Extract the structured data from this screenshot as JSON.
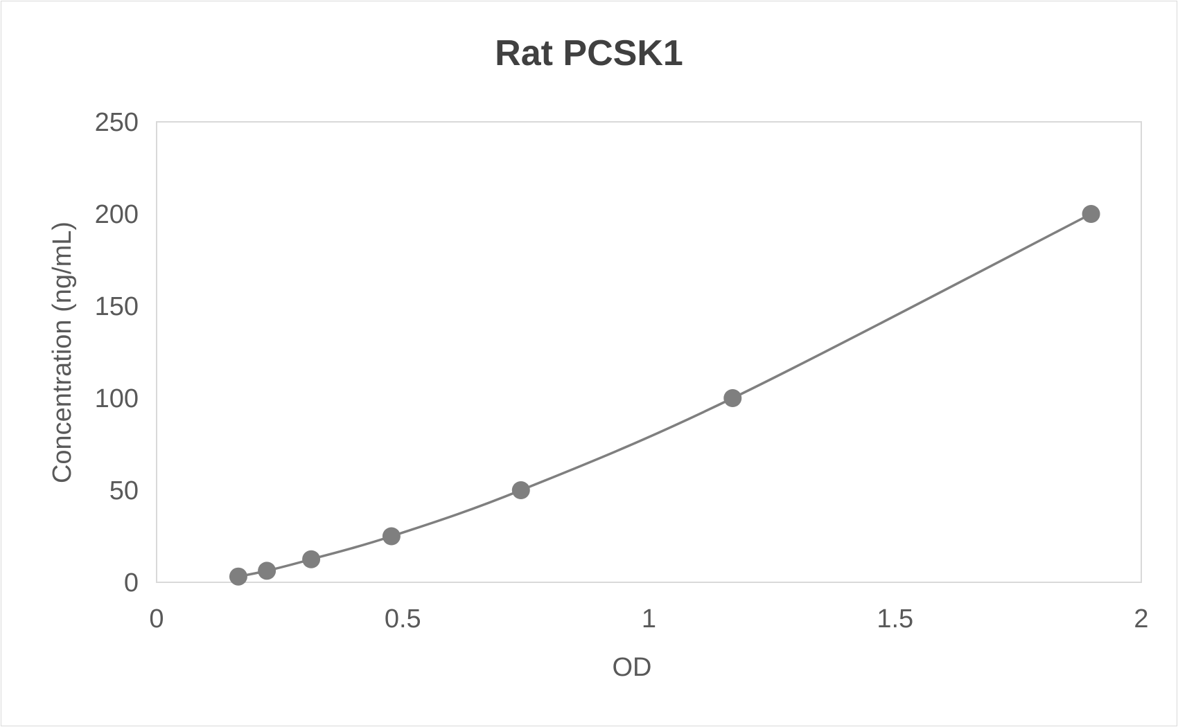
{
  "chart_data": {
    "type": "scatter",
    "title": "Rat PCSK1",
    "xlabel": "OD",
    "ylabel": "Concentration (ng/mL)",
    "xlim": [
      0,
      2
    ],
    "ylim": [
      0,
      250
    ],
    "xticks": [
      "0",
      "0.5",
      "1",
      "1.5",
      "2"
    ],
    "yticks": [
      "0",
      "50",
      "100",
      "150",
      "200",
      "250"
    ],
    "grid": false,
    "legend": "none",
    "line": "smoothed",
    "color": "#7f7f7f",
    "series": [
      {
        "x": [
          0.166,
          0.224,
          0.314,
          0.477,
          0.74,
          1.17,
          1.898
        ],
        "y": [
          3.125,
          6.25,
          12.5,
          25,
          50,
          100,
          200
        ]
      }
    ]
  }
}
